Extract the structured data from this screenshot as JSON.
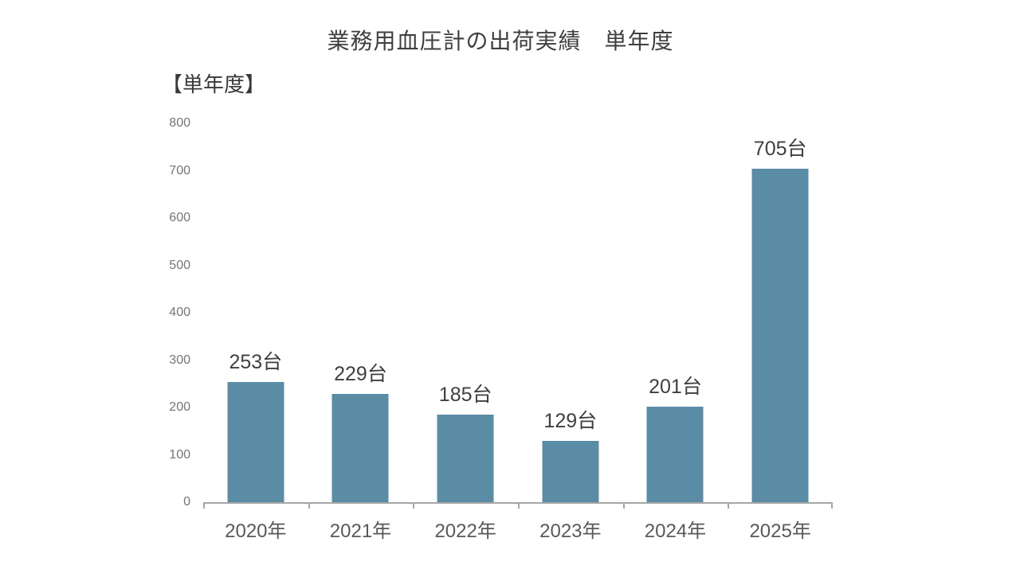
{
  "title": "業務用血圧計の出荷実績　単年度",
  "corner_label": "【単年度】",
  "chart_data": {
    "type": "bar",
    "title": "業務用血圧計の出荷実績　単年度",
    "categories": [
      "2020年",
      "2021年",
      "2022年",
      "2023年",
      "2024年",
      "2025年"
    ],
    "values": [
      253,
      229,
      185,
      129,
      201,
      705
    ],
    "data_labels": [
      "253台",
      "229台",
      "185台",
      "129台",
      "201台",
      "705台"
    ],
    "unit": "台",
    "xlabel": "",
    "ylabel": "",
    "ylim": [
      0,
      800
    ],
    "yticks": [
      0,
      100,
      200,
      300,
      400,
      500,
      600,
      700,
      800
    ],
    "grid": false,
    "legend": "none",
    "bar_color": "#5b8ca5",
    "axis_color": "#a6a6a6",
    "ytick_label_color": "#757575",
    "xtick_label_color": "#595959",
    "data_label_color": "#3f3f3f"
  }
}
